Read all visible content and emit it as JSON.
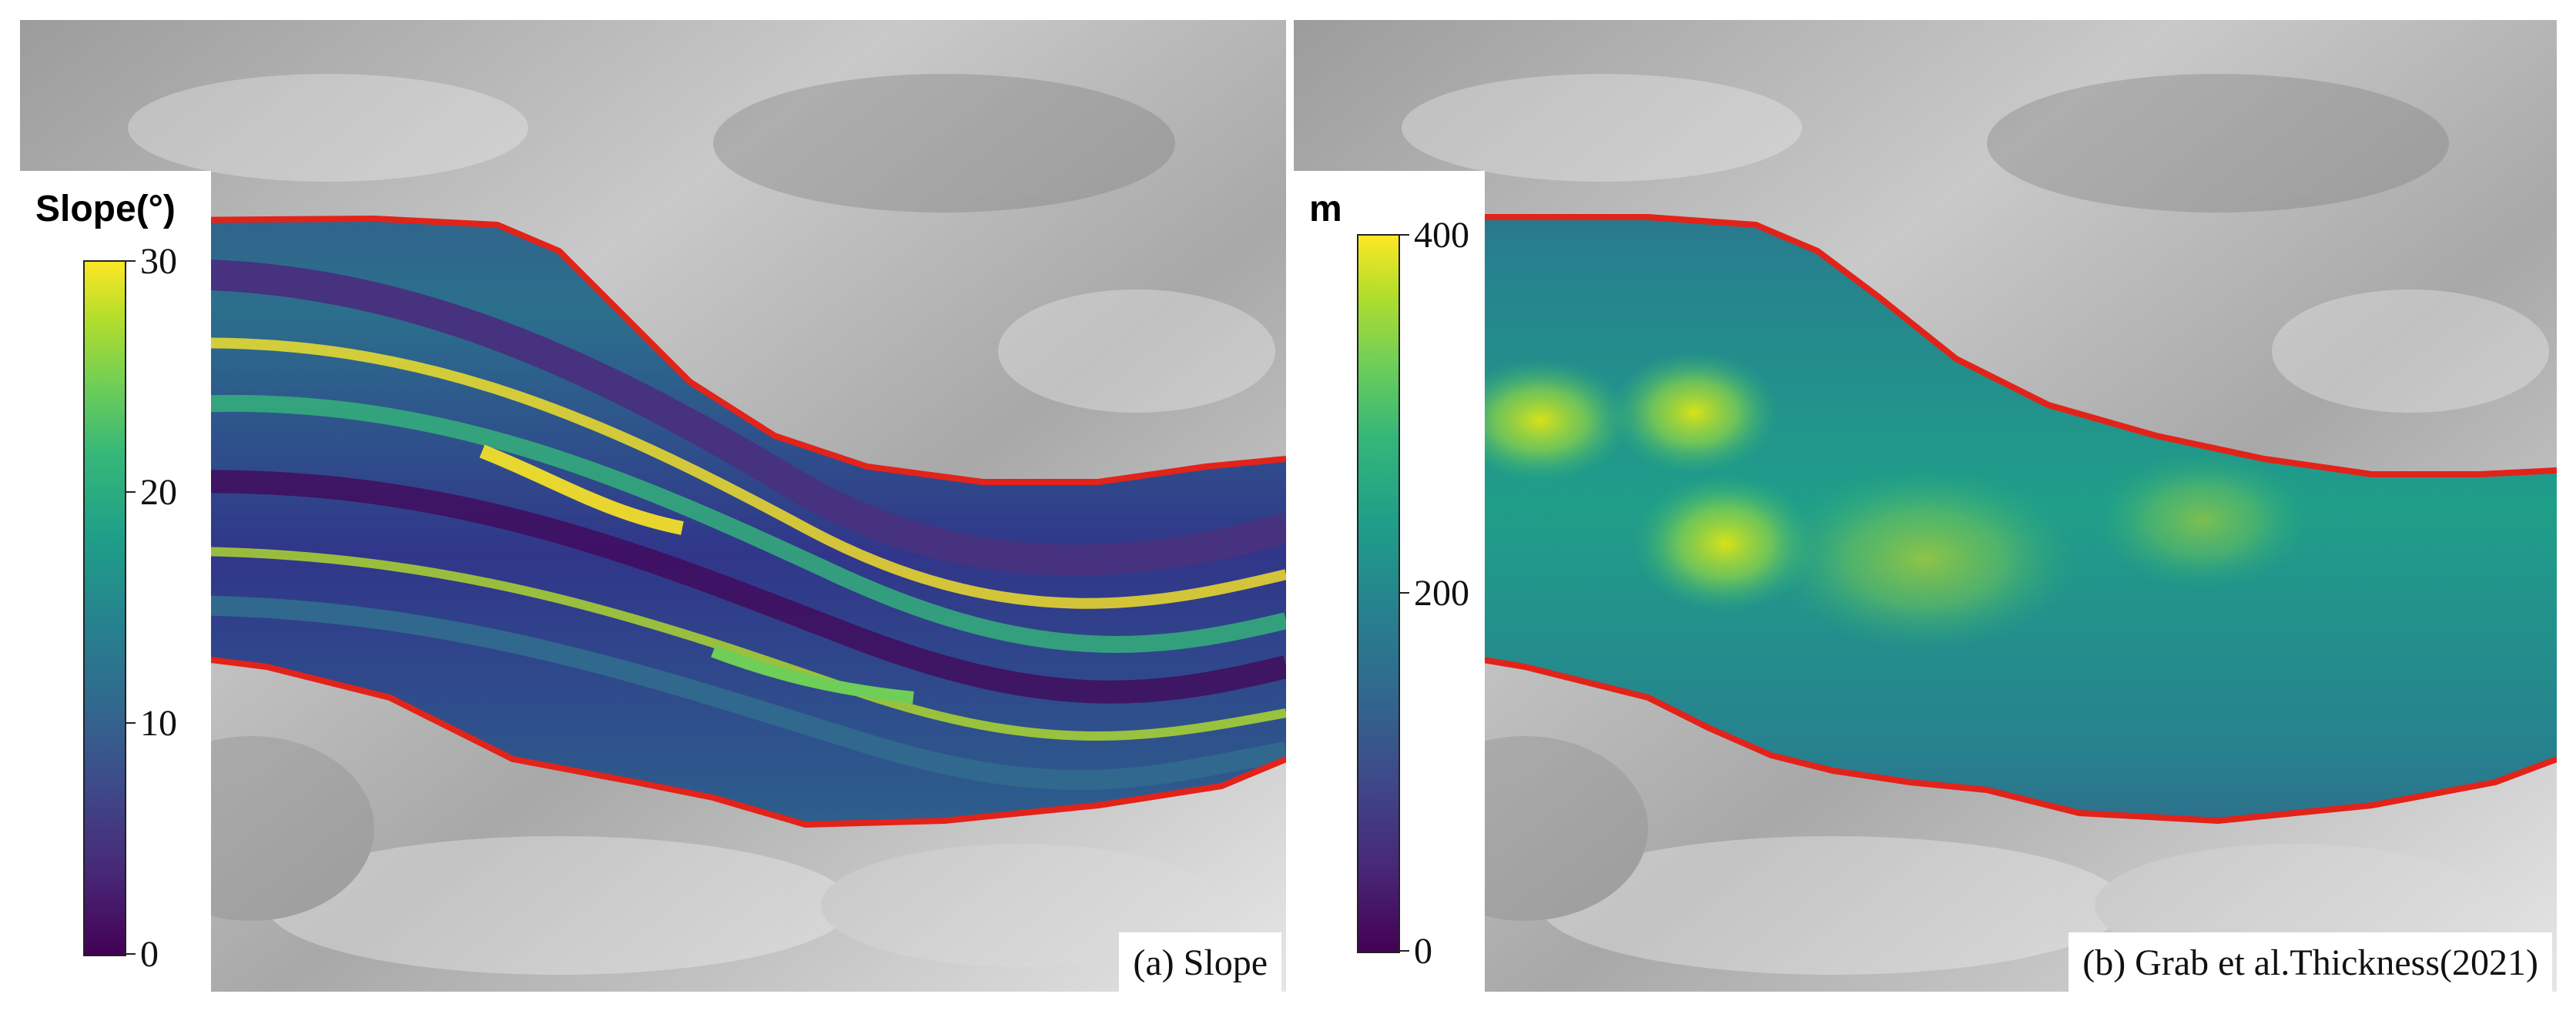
{
  "panels": [
    {
      "label": "(a) Slope",
      "colorbar": {
        "title": "Slope(°)",
        "ticks": [
          "0",
          "10",
          "20",
          "30"
        ],
        "range": [
          0,
          30
        ],
        "colormap": "viridis"
      }
    },
    {
      "label": "(b) Grab et al.Thickness(2021)",
      "colorbar": {
        "title": "m",
        "ticks": [
          "0",
          "200",
          "400"
        ],
        "range": [
          0,
          400
        ],
        "colormap": "viridis"
      }
    }
  ],
  "colors": {
    "glacier_outline": "#e2231a",
    "hillshade": "#bdbdbd",
    "viridis_low": "#440154",
    "viridis_high": "#fde725"
  }
}
